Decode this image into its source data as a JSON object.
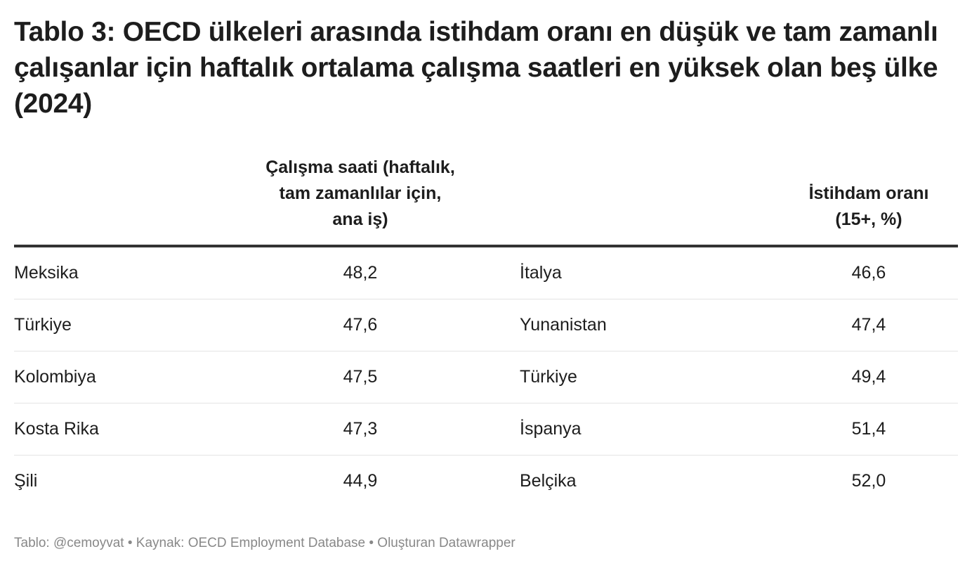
{
  "title": "Tablo 3: OECD ülkeleri arasında istihdam oranı en düşük ve tam zamanlı çalışanlar için haftalık ortalama çalışma saatleri en yüksek olan beş ülke (2024)",
  "chart_data": {
    "type": "table",
    "title": "Tablo 3: OECD ülkeleri arasında istihdam oranı en düşük ve tam zamanlı çalışanlar için haftalık ortalama çalışma saatleri en yüksek olan beş ülke (2024)",
    "columns": [
      "",
      "Çalışma saati (haftalık, tam zamanlılar için, ana iş)",
      "",
      "İstihdam oranı (15+, %)"
    ],
    "header_lines": {
      "hours": [
        "Çalışma saati (haftalık,",
        "tam zamanlılar için,",
        "ana iş)"
      ],
      "employment": [
        "İstihdam oranı",
        "(15+, %)"
      ]
    },
    "rows": [
      {
        "country_hours": "Meksika",
        "hours": "48,2",
        "country_employment": "İtalya",
        "employment": "46,6"
      },
      {
        "country_hours": "Türkiye",
        "hours": "47,6",
        "country_employment": "Yunanistan",
        "employment": "47,4"
      },
      {
        "country_hours": "Kolombiya",
        "hours": "47,5",
        "country_employment": "Türkiye",
        "employment": "49,4"
      },
      {
        "country_hours": "Kosta Rika",
        "hours": "47,3",
        "country_employment": "İspanya",
        "employment": "51,4"
      },
      {
        "country_hours": "Şili",
        "hours": "44,9",
        "country_employment": "Belçika",
        "employment": "52,0"
      }
    ]
  },
  "footer": "Tablo: @cemoyvat • Kaynak: OECD Employment Database • Oluşturan Datawrapper"
}
